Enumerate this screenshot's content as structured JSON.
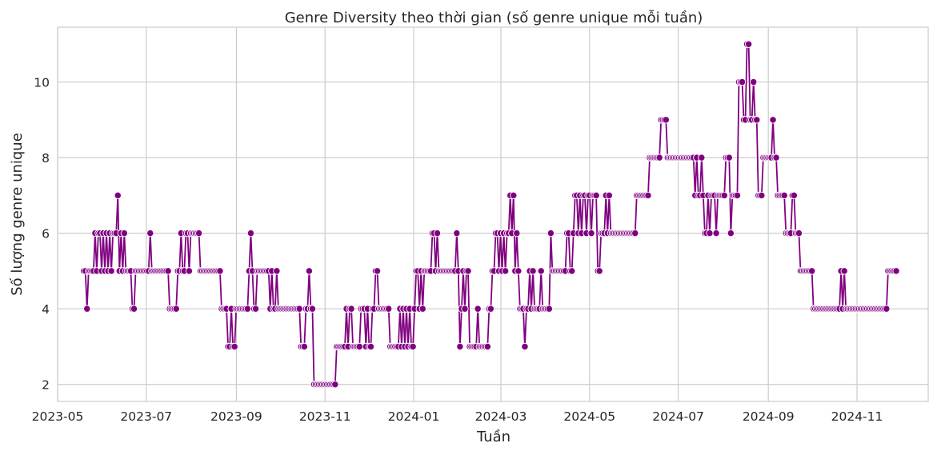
{
  "chart_data": {
    "type": "line",
    "title": "Genre Diversity theo thời gian (số genre unique mỗi tuần)",
    "xlabel": "Tuần",
    "ylabel": "Số lượng genre unique",
    "xlim": [
      "2023-05-01",
      "2024-12-20"
    ],
    "ylim": [
      1.55,
      11.45
    ],
    "grid": true,
    "line_color": "#800080",
    "marker": "circle",
    "x_ticks": [
      "2023-05",
      "2023-07",
      "2023-09",
      "2023-11",
      "2024-01",
      "2024-03",
      "2024-05",
      "2024-07",
      "2024-09",
      "2024-11"
    ],
    "y_ticks": [
      2,
      4,
      6,
      8,
      10
    ],
    "series": [
      {
        "start_date": "2023-05-19",
        "end_date": "2024-11-28",
        "values": [
          5,
          5,
          4,
          5,
          5,
          5,
          5,
          6,
          5,
          6,
          6,
          5,
          6,
          5,
          6,
          5,
          6,
          5,
          6,
          6,
          6,
          7,
          5,
          6,
          5,
          6,
          5,
          5,
          5,
          5,
          4,
          4,
          5,
          5,
          5,
          5,
          5,
          5,
          5,
          5,
          5,
          6,
          5,
          5,
          5,
          5,
          5,
          5,
          5,
          5,
          5,
          5,
          5,
          4,
          4,
          4,
          4,
          4,
          5,
          5,
          6,
          5,
          5,
          6,
          6,
          5,
          6,
          6,
          6,
          6,
          6,
          6,
          5,
          5,
          5,
          5,
          5,
          5,
          5,
          5,
          5,
          5,
          5,
          5,
          5,
          4,
          4,
          4,
          4,
          3,
          3,
          4,
          3,
          3,
          4,
          4,
          4,
          4,
          4,
          4,
          4,
          4,
          5,
          6,
          5,
          4,
          4,
          5,
          5,
          5,
          5,
          5,
          5,
          5,
          5,
          4,
          5,
          4,
          4,
          5,
          4,
          4,
          4,
          4,
          4,
          4,
          4,
          4,
          4,
          4,
          4,
          4,
          4,
          4,
          3,
          3,
          3,
          4,
          4,
          5,
          4,
          4,
          2,
          2,
          2,
          2,
          2,
          2,
          2,
          2,
          2,
          2,
          2,
          2,
          2,
          2,
          3,
          3,
          3,
          3,
          3,
          3,
          4,
          3,
          4,
          4,
          3,
          3,
          3,
          3,
          3,
          4,
          4,
          4,
          3,
          4,
          3,
          3,
          4,
          4,
          5,
          5,
          4,
          4,
          4,
          4,
          4,
          4,
          4,
          3,
          3,
          3,
          3,
          3,
          3,
          4,
          3,
          4,
          3,
          4,
          3,
          4,
          3,
          3,
          4,
          5,
          5,
          4,
          5,
          4,
          5,
          5,
          5,
          5,
          5,
          6,
          6,
          5,
          6,
          5,
          5,
          5,
          5,
          5,
          5,
          5,
          5,
          5,
          5,
          5,
          6,
          5,
          3,
          4,
          5,
          4,
          5,
          5,
          3,
          3,
          3,
          3,
          3,
          4,
          3,
          3,
          3,
          3,
          3,
          3,
          4,
          4,
          5,
          5,
          6,
          6,
          5,
          6,
          5,
          6,
          5,
          6,
          6,
          7,
          6,
          7,
          5,
          6,
          5,
          4,
          4,
          4,
          3,
          4,
          4,
          5,
          4,
          5,
          4,
          4,
          4,
          4,
          5,
          4,
          4,
          4,
          4,
          4,
          6,
          5,
          5,
          5,
          5,
          5,
          5,
          5,
          5,
          5,
          6,
          6,
          5,
          5,
          6,
          7,
          7,
          6,
          7,
          6,
          7,
          7,
          6,
          7,
          7,
          6,
          7,
          7,
          7,
          5,
          5,
          6,
          6,
          6,
          7,
          6,
          7,
          6,
          6,
          6,
          6,
          6,
          6,
          6,
          6,
          6,
          6,
          6,
          6,
          6,
          6,
          6,
          6,
          7,
          7,
          7,
          7,
          7,
          7,
          7,
          7,
          8,
          8,
          8,
          8,
          8,
          8,
          8,
          9,
          9,
          9,
          9,
          8,
          8,
          8,
          8,
          8,
          8,
          8,
          8,
          8,
          8,
          8,
          8,
          8,
          8,
          8,
          8,
          8,
          7,
          8,
          7,
          7,
          8,
          7,
          6,
          6,
          7,
          6,
          7,
          7,
          7,
          6,
          7,
          7,
          7,
          7,
          7,
          8,
          8,
          8,
          6,
          7,
          7,
          7,
          7,
          10,
          10,
          10,
          9,
          9,
          11,
          11,
          9,
          9,
          10,
          9,
          9,
          7,
          7,
          7,
          8,
          8,
          8,
          8,
          8,
          8,
          9,
          8,
          8,
          7,
          7,
          7,
          7,
          7,
          6,
          6,
          6,
          6,
          7,
          7,
          6,
          6,
          6,
          5,
          5,
          5,
          5,
          5,
          5,
          5,
          5,
          4,
          4,
          4,
          4,
          4,
          4,
          4,
          4,
          4,
          4,
          4,
          4,
          4,
          4,
          4,
          4,
          4,
          5,
          4,
          5,
          4,
          4,
          4,
          4,
          4,
          4,
          4,
          4,
          4,
          4,
          4,
          4,
          4,
          4,
          4,
          4,
          4,
          4,
          4,
          4,
          4,
          4,
          4,
          4,
          4,
          4,
          5,
          5,
          5,
          5,
          5,
          5
        ]
      }
    ]
  }
}
